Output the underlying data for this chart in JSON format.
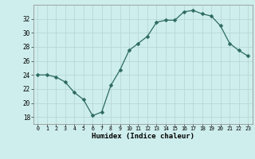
{
  "x": [
    0,
    1,
    2,
    3,
    4,
    5,
    6,
    7,
    8,
    9,
    10,
    11,
    12,
    13,
    14,
    15,
    16,
    17,
    18,
    19,
    20,
    21,
    22,
    23
  ],
  "y": [
    24,
    24,
    23.7,
    23,
    21.5,
    20.5,
    18.2,
    18.7,
    22.5,
    24.7,
    27.5,
    28.5,
    29.5,
    31.5,
    31.8,
    31.8,
    33.0,
    33.2,
    32.7,
    32.4,
    31.0,
    28.5,
    27.5,
    26.7
  ],
  "line_color": "#2d6b5e",
  "marker": "D",
  "marker_size": 2.5,
  "background_color": "#ceeeed",
  "grid_color": "#b8d8d8",
  "xlabel": "Humidex (Indice chaleur)",
  "ylim": [
    17,
    34
  ],
  "xlim": [
    -0.5,
    23.5
  ],
  "yticks": [
    18,
    20,
    22,
    24,
    26,
    28,
    30,
    32
  ],
  "xticks": [
    0,
    1,
    2,
    3,
    4,
    5,
    6,
    7,
    8,
    9,
    10,
    11,
    12,
    13,
    14,
    15,
    16,
    17,
    18,
    19,
    20,
    21,
    22,
    23
  ]
}
